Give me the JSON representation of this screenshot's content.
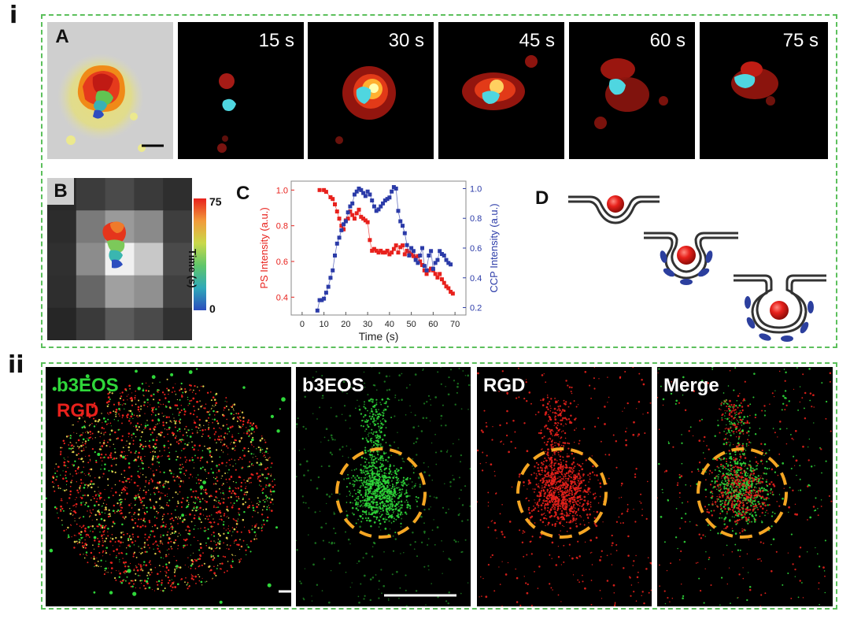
{
  "section_i": {
    "label": "i",
    "panel_a": {
      "letter": "A",
      "time_labels": [
        "15 s",
        "30 s",
        "45 s",
        "60 s",
        "75 s"
      ]
    },
    "panel_b": {
      "letter": "B",
      "colorbar_label": "Time (s)",
      "colorbar_max": "75",
      "colorbar_min": "0"
    },
    "panel_c": {
      "letter": "C"
    },
    "panel_d": {
      "letter": "D"
    }
  },
  "section_ii": {
    "label": "ii",
    "overview_labels": [
      "b3EOS",
      "RGD"
    ],
    "panels": [
      "b3EOS",
      "RGD",
      "Merge"
    ],
    "colors": {
      "green": "#2fd73a",
      "red": "#e8211c",
      "ring": "#f5a623"
    }
  },
  "chart_data": {
    "type": "line",
    "xlabel": "Time (s)",
    "ylabel": "PS Intensity (a.u.)",
    "y2label": "CCP Intensity (a.u.)",
    "xlim": [
      -5,
      75
    ],
    "ylim": [
      0.3,
      1.05
    ],
    "y2lim": [
      0.15,
      1.05
    ],
    "xticks": [
      0,
      10,
      20,
      30,
      40,
      50,
      60,
      70
    ],
    "yticks": [
      0.4,
      0.6,
      0.8,
      1.0
    ],
    "y2ticks": [
      0.2,
      0.4,
      0.6,
      0.8,
      1.0
    ],
    "series": [
      {
        "name": "PS Intensity",
        "color": "#e8211c",
        "axis": "left",
        "x": [
          8,
          10,
          11,
          13,
          14,
          15,
          16,
          17,
          18,
          19,
          20,
          21,
          22,
          23,
          24,
          25,
          26,
          27,
          28,
          29,
          30,
          31,
          32,
          33,
          34,
          35,
          36,
          37,
          38,
          39,
          40,
          41,
          42,
          43,
          44,
          45,
          46,
          47,
          48,
          49,
          50,
          51,
          52,
          53,
          54,
          55,
          56,
          57,
          58,
          59,
          60,
          61,
          62,
          63,
          64,
          65,
          66,
          67,
          68,
          69
        ],
        "y": [
          1.0,
          1.0,
          0.99,
          0.96,
          0.95,
          0.92,
          0.88,
          0.84,
          0.8,
          0.78,
          0.83,
          0.84,
          0.88,
          0.86,
          0.84,
          0.87,
          0.89,
          0.85,
          0.84,
          0.83,
          0.82,
          0.72,
          0.66,
          0.67,
          0.66,
          0.65,
          0.66,
          0.65,
          0.65,
          0.66,
          0.64,
          0.65,
          0.67,
          0.69,
          0.65,
          0.68,
          0.69,
          0.64,
          0.66,
          0.65,
          0.64,
          0.63,
          0.62,
          0.63,
          0.6,
          0.58,
          0.55,
          0.53,
          0.55,
          0.56,
          0.55,
          0.53,
          0.51,
          0.53,
          0.5,
          0.48,
          0.46,
          0.45,
          0.43,
          0.42
        ]
      },
      {
        "name": "CCP Intensity",
        "color": "#2b3ba8",
        "axis": "right",
        "x": [
          7,
          8,
          9,
          10,
          11,
          12,
          13,
          14,
          15,
          16,
          17,
          18,
          19,
          20,
          21,
          22,
          23,
          24,
          25,
          26,
          27,
          28,
          29,
          30,
          31,
          32,
          33,
          34,
          35,
          36,
          37,
          38,
          39,
          40,
          41,
          42,
          43,
          44,
          45,
          46,
          47,
          48,
          49,
          50,
          51,
          52,
          53,
          54,
          55,
          56,
          57,
          58,
          59,
          60,
          61,
          62,
          63,
          64,
          65,
          66,
          67,
          68
        ],
        "y": [
          0.18,
          0.25,
          0.25,
          0.26,
          0.3,
          0.34,
          0.4,
          0.45,
          0.55,
          0.63,
          0.67,
          0.72,
          0.76,
          0.78,
          0.84,
          0.88,
          0.9,
          0.96,
          0.98,
          1.0,
          0.99,
          0.97,
          0.95,
          0.98,
          0.96,
          0.92,
          0.88,
          0.85,
          0.86,
          0.88,
          0.9,
          0.92,
          0.93,
          0.94,
          0.98,
          1.01,
          1.0,
          0.85,
          0.78,
          0.75,
          0.7,
          0.62,
          0.55,
          0.6,
          0.58,
          0.52,
          0.5,
          0.55,
          0.6,
          0.48,
          0.45,
          0.55,
          0.58,
          0.46,
          0.5,
          0.52,
          0.58,
          0.56,
          0.55,
          0.52,
          0.5,
          0.49
        ]
      }
    ]
  }
}
